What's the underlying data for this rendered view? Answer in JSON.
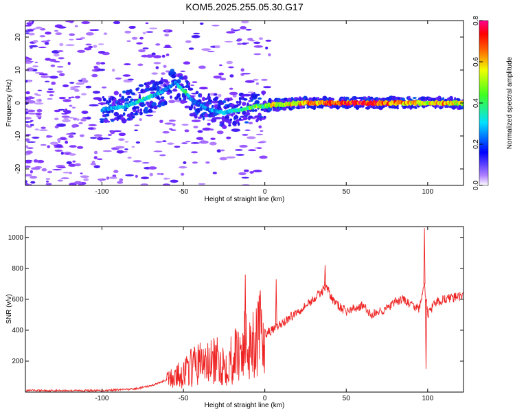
{
  "title": "KOM5.2025.255.05.30.G17",
  "chart_data": [
    {
      "type": "heatmap",
      "name": "spectrogram",
      "xlabel": "Height of straight line (km)",
      "ylabel": "Frequency (Hz)",
      "xlim": [
        -147,
        122
      ],
      "ylim": [
        -25,
        25
      ],
      "xticks": [
        -100,
        -50,
        0,
        50,
        100
      ],
      "yticks": [
        -20,
        -10,
        0,
        10,
        20
      ],
      "colorbar": {
        "label": "Normalized spectral amplitude",
        "range": [
          0.0,
          0.8
        ],
        "ticks": [
          0.0,
          0.2,
          0.4,
          0.6,
          0.8
        ]
      },
      "ridge": [
        {
          "x": -100,
          "f": -2,
          "amp": 0.25
        },
        {
          "x": -85,
          "f": -1,
          "amp": 0.3
        },
        {
          "x": -75,
          "f": 1,
          "amp": 0.35
        },
        {
          "x": -65,
          "f": 3,
          "amp": 0.3
        },
        {
          "x": -55,
          "f": 6,
          "amp": 0.25
        },
        {
          "x": -50,
          "f": 4,
          "amp": 0.4
        },
        {
          "x": -45,
          "f": 1,
          "amp": 0.25
        },
        {
          "x": -35,
          "f": -2,
          "amp": 0.25
        },
        {
          "x": -25,
          "f": -3,
          "amp": 0.3
        },
        {
          "x": -15,
          "f": -2,
          "amp": 0.35
        },
        {
          "x": -5,
          "f": -1,
          "amp": 0.45
        },
        {
          "x": 0,
          "f": -1,
          "amp": 0.4
        },
        {
          "x": 5,
          "f": -0.5,
          "amp": 0.55
        },
        {
          "x": 10,
          "f": -0.5,
          "amp": 0.45
        },
        {
          "x": 20,
          "f": 0,
          "amp": 0.55
        },
        {
          "x": 30,
          "f": 0,
          "amp": 0.6
        },
        {
          "x": 40,
          "f": 0,
          "amp": 0.65
        },
        {
          "x": 50,
          "f": 0,
          "amp": 0.65
        },
        {
          "x": 60,
          "f": 0,
          "amp": 0.7
        },
        {
          "x": 70,
          "f": 0,
          "amp": 0.65
        },
        {
          "x": 80,
          "f": 0,
          "amp": 0.6
        },
        {
          "x": 90,
          "f": 0,
          "amp": 0.55
        },
        {
          "x": 100,
          "f": 0,
          "amp": 0.5
        },
        {
          "x": 110,
          "f": 0,
          "amp": 0.6
        },
        {
          "x": 120,
          "f": 0,
          "amp": 0.5
        }
      ]
    },
    {
      "type": "line",
      "name": "snr",
      "xlabel": "Height of straight line (km)",
      "ylabel": "SNR (v/v)",
      "xlim": [
        -147,
        122
      ],
      "ylim": [
        0,
        1070
      ],
      "xticks": [
        -100,
        -50,
        0,
        50,
        100
      ],
      "yticks": [
        200,
        400,
        600,
        800,
        1000
      ],
      "color": "#ee2222",
      "series": [
        {
          "name": "SNR",
          "x": [
            -147,
            -130,
            -110,
            -100,
            -90,
            -80,
            -70,
            -60,
            -55,
            -50,
            -45,
            -40,
            -35,
            -30,
            -25,
            -20,
            -15,
            -10,
            -5,
            0,
            5,
            10,
            15,
            20,
            25,
            30,
            35,
            38,
            40,
            45,
            50,
            55,
            60,
            65,
            70,
            75,
            80,
            85,
            90,
            95,
            98,
            100,
            105,
            110,
            115,
            122
          ],
          "y": [
            10,
            10,
            10,
            10,
            15,
            20,
            40,
            80,
            100,
            120,
            160,
            190,
            180,
            200,
            180,
            220,
            280,
            320,
            360,
            380,
            400,
            440,
            480,
            520,
            560,
            600,
            650,
            700,
            620,
            560,
            520,
            540,
            560,
            500,
            520,
            540,
            580,
            600,
            560,
            540,
            700,
            500,
            580,
            600,
            610,
            620
          ]
        }
      ],
      "spikes": [
        {
          "x": -12,
          "y": 760
        },
        {
          "x": 7,
          "y": 730
        },
        {
          "x": 37,
          "y": 820
        },
        {
          "x": 98,
          "y": 1060
        },
        {
          "x": 99,
          "y": 150
        }
      ]
    }
  ]
}
